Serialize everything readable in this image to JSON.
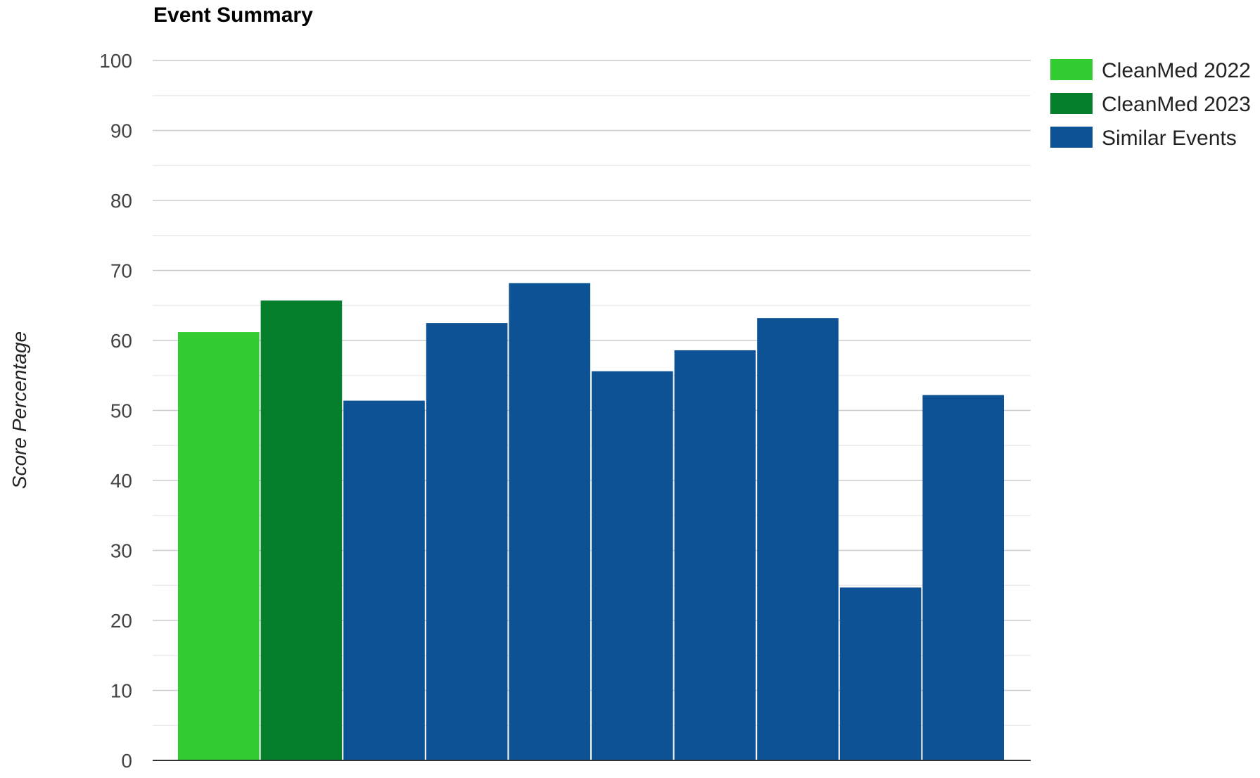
{
  "chart_data": {
    "type": "bar",
    "title": "Event Summary",
    "xlabel": "",
    "ylabel": "Score Percentage",
    "ylim": [
      0,
      100
    ],
    "yticks": [
      0,
      10,
      20,
      30,
      40,
      50,
      60,
      70,
      80,
      90,
      100
    ],
    "minor_gridlines": true,
    "legend_position": "top-right",
    "series": [
      {
        "name": "CleanMed 2022",
        "color": "#33cc33",
        "values": [
          61.2
        ]
      },
      {
        "name": "CleanMed 2023",
        "color": "#067f2d",
        "values": [
          65.7
        ]
      },
      {
        "name": "Similar Events",
        "color": "#0d5295",
        "values": [
          51.4,
          62.5,
          68.2,
          55.6,
          58.6,
          63.2,
          24.7,
          52.2
        ]
      }
    ]
  }
}
